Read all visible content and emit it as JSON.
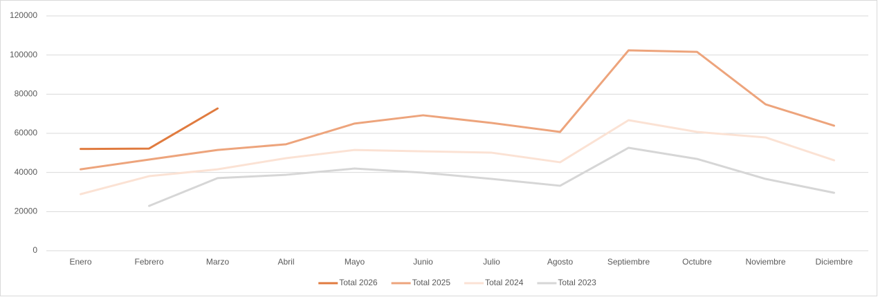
{
  "chart_data": {
    "type": "line",
    "categories": [
      "Enero",
      "Febrero",
      "Marzo",
      "Abril",
      "Mayo",
      "Junio",
      "Julio",
      "Agosto",
      "Septiembre",
      "Octubre",
      "Noviembre",
      "Diciembre"
    ],
    "series": [
      {
        "name": "Total 2026",
        "color": "#e07b3f",
        "values": [
          52000,
          52200,
          72700,
          null,
          null,
          null,
          null,
          null,
          null,
          null,
          null,
          null
        ]
      },
      {
        "name": "Total 2025",
        "color": "#eda47c",
        "values": [
          41600,
          46600,
          51500,
          54400,
          65000,
          69200,
          65300,
          60700,
          102400,
          101600,
          74800,
          63900
        ]
      },
      {
        "name": "Total 2024",
        "color": "#fbe2d4",
        "values": [
          28900,
          38100,
          41600,
          47300,
          51500,
          50800,
          50100,
          45200,
          66700,
          60700,
          57900,
          46200
        ]
      },
      {
        "name": "Total 2023",
        "color": "#d6d6d6",
        "values": [
          null,
          22900,
          37100,
          38800,
          42000,
          39900,
          36700,
          33200,
          52600,
          46900,
          36700,
          29600
        ]
      }
    ],
    "ylim": [
      0,
      120000
    ],
    "yticks": [
      0,
      20000,
      40000,
      60000,
      80000,
      100000,
      120000
    ],
    "grid": true,
    "legend": "bottom"
  }
}
